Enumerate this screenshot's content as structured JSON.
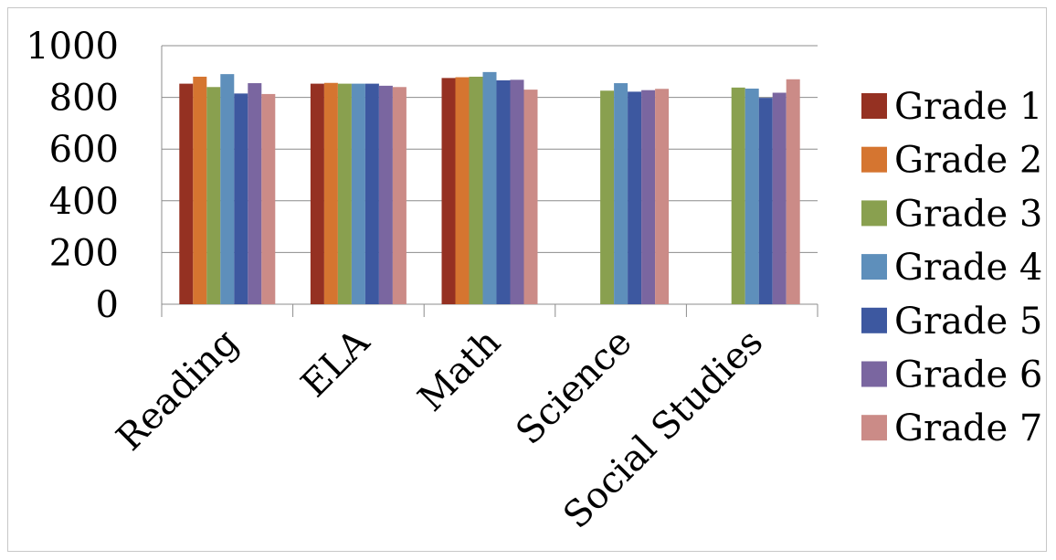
{
  "chart_data": {
    "type": "bar",
    "title": "",
    "xlabel": "",
    "ylabel": "",
    "ylim": [
      0,
      1000
    ],
    "yticks": [
      0,
      200,
      400,
      600,
      800,
      1000
    ],
    "grid": true,
    "legend_position": "right",
    "categories": [
      "Reading",
      "ELA",
      "Math",
      "Science",
      "Social Studies"
    ],
    "series": [
      {
        "name": "Grade 1",
        "color": "#953122",
        "values": [
          853,
          853,
          875,
          null,
          null
        ]
      },
      {
        "name": "Grade 2",
        "color": "#d57530",
        "values": [
          880,
          856,
          878,
          null,
          null
        ]
      },
      {
        "name": "Grade 3",
        "color": "#89a04f",
        "values": [
          840,
          853,
          880,
          826,
          838
        ]
      },
      {
        "name": "Grade 4",
        "color": "#5e8fbb",
        "values": [
          890,
          853,
          898,
          855,
          834
        ]
      },
      {
        "name": "Grade 5",
        "color": "#3d58a0",
        "values": [
          815,
          853,
          866,
          822,
          798
        ]
      },
      {
        "name": "Grade 6",
        "color": "#7a66a0",
        "values": [
          855,
          845,
          868,
          828,
          818
        ]
      },
      {
        "name": "Grade 7",
        "color": "#cb8b87",
        "values": [
          813,
          840,
          830,
          833,
          870
        ]
      }
    ]
  }
}
